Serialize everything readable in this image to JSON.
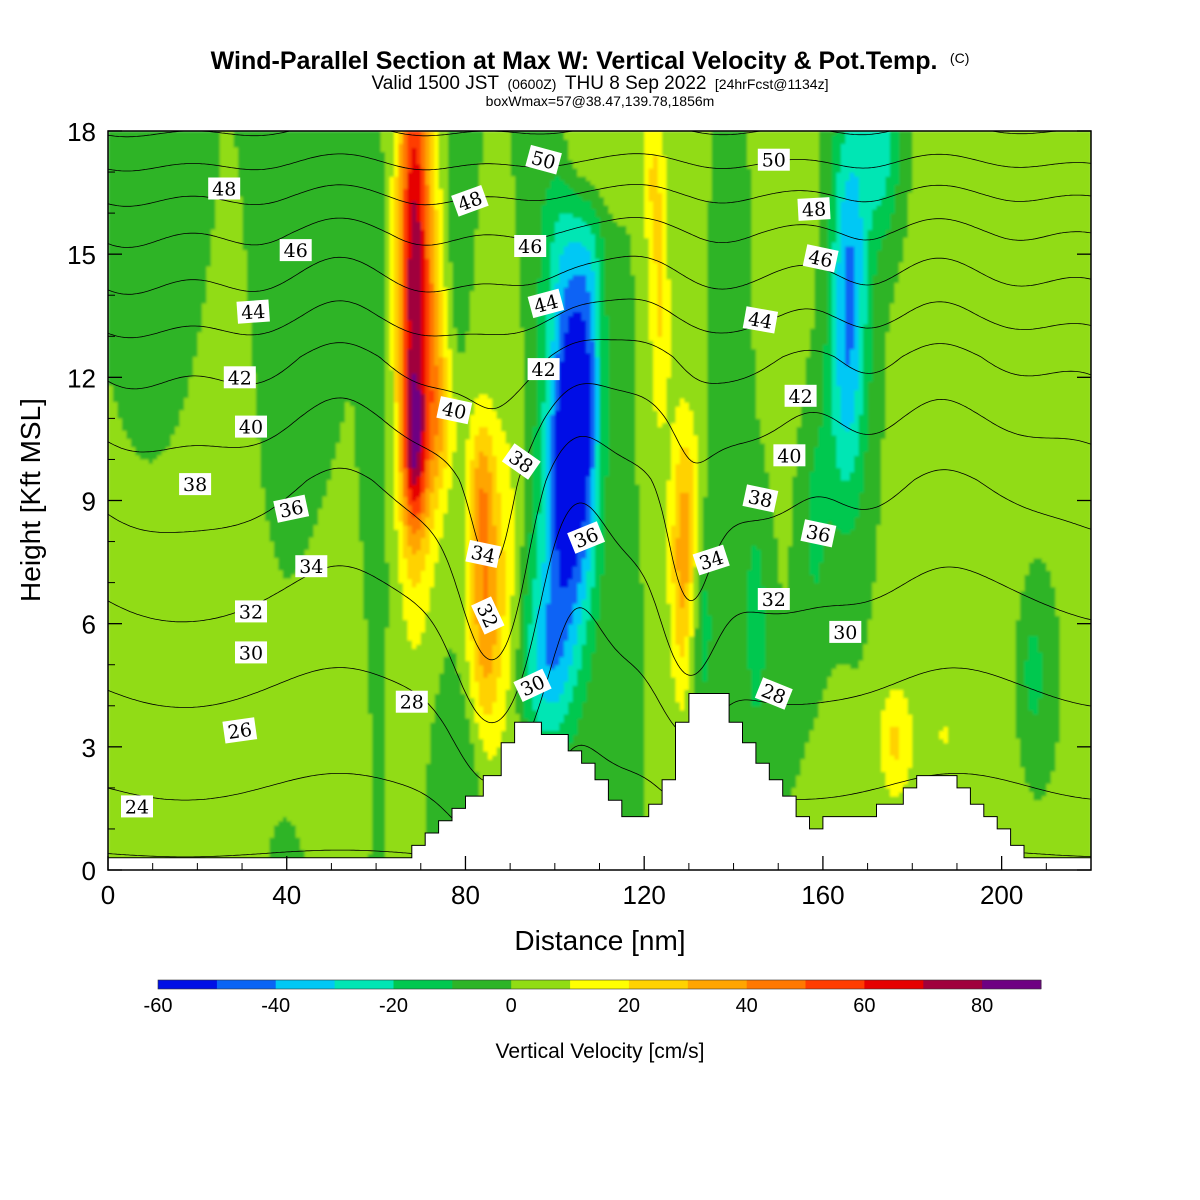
{
  "header": {
    "title": "Wind-Parallel Section at Max W: Vertical Velocity & Pot.Temp.",
    "title_mark": "(C)",
    "valid_prefix": "Valid 1500 JST",
    "valid_utc": "(0600Z)",
    "valid_date": "THU 8 Sep 2022",
    "forecast": "[24hrFcst@1134z]",
    "box_info": "boxWmax=57@38.47,139.78,1856m"
  },
  "chart_data": {
    "type": "heatmap",
    "xlabel": "Distance [nm]",
    "ylabel": "Height [Kft MSL]",
    "xlim": [
      0,
      220
    ],
    "ylim": [
      0,
      18
    ],
    "x_ticks": [
      0,
      40,
      80,
      120,
      160,
      200
    ],
    "y_ticks": [
      0,
      3,
      6,
      9,
      12,
      15,
      18
    ],
    "colorbar": {
      "title": "Vertical Velocity [cm/s]",
      "range": [
        -60,
        90
      ],
      "step": 10,
      "tick_labels": [
        "-60",
        "-40",
        "-20",
        "0",
        "20",
        "40",
        "60",
        "80"
      ],
      "colors": [
        "#0010e6",
        "#0a64f5",
        "#00c8f5",
        "#00e6b4",
        "#00c850",
        "#2db428",
        "#91dc14",
        "#ffff00",
        "#ffd200",
        "#ffa500",
        "#ff7800",
        "#ff3c00",
        "#e60000",
        "#a0003c",
        "#6e0082"
      ]
    },
    "background_color": "#2db428",
    "velocity_features": [
      {
        "x": 68.5,
        "y": 14.5,
        "sx": 2.6,
        "sy": 4.5,
        "w": 75
      },
      {
        "x": 68.5,
        "y": 10.2,
        "sx": 1.8,
        "sy": 1.3,
        "w": 35
      },
      {
        "x": 73,
        "y": 12.2,
        "sx": 2.2,
        "sy": 3,
        "w": 22
      },
      {
        "x": 75,
        "y": 11,
        "sx": 2.5,
        "sy": 1.3,
        "w": 16
      },
      {
        "x": 84.5,
        "y": 6.5,
        "sx": 2.8,
        "sy": 2.7,
        "w": 40
      },
      {
        "x": 83.5,
        "y": 9.5,
        "sx": 2,
        "sy": 1.2,
        "w": 18
      },
      {
        "x": 90,
        "y": 7.5,
        "sx": 2,
        "sy": 4,
        "w": 10
      },
      {
        "x": 104,
        "y": 11,
        "sx": 3.6,
        "sy": 2.6,
        "w": -55
      },
      {
        "x": 102,
        "y": 8,
        "sx": 4.5,
        "sy": 2.6,
        "w": -32
      },
      {
        "x": 98,
        "y": 5,
        "sx": 4,
        "sy": 1.5,
        "w": -27
      },
      {
        "x": 103,
        "y": 15.5,
        "sx": 5,
        "sy": 2,
        "w": -18
      },
      {
        "x": 108,
        "y": 13,
        "sx": 2,
        "sy": 3,
        "w": -15
      },
      {
        "x": 107,
        "y": 17.4,
        "sx": 4,
        "sy": 1.2,
        "w": 22
      },
      {
        "x": 122,
        "y": 17,
        "sx": 1.8,
        "sy": 1.5,
        "w": 18
      },
      {
        "x": 123.5,
        "y": 13.5,
        "sx": 1.7,
        "sy": 2.2,
        "w": 20
      },
      {
        "x": 128.5,
        "y": 7.6,
        "sx": 2,
        "sy": 2.4,
        "w": 34
      },
      {
        "x": 131,
        "y": 8.8,
        "sx": 1.5,
        "sy": 1.5,
        "w": 12
      },
      {
        "x": 133,
        "y": 6,
        "sx": 2,
        "sy": 2,
        "w": -14
      },
      {
        "x": 145,
        "y": 6,
        "sx": 2.2,
        "sy": 2.5,
        "w": -14
      },
      {
        "x": 166,
        "y": 14.8,
        "sx": 3,
        "sy": 2.8,
        "w": -38
      },
      {
        "x": 165,
        "y": 11,
        "sx": 3,
        "sy": 2.2,
        "w": -18
      },
      {
        "x": 158,
        "y": 8.5,
        "sx": 2.5,
        "sy": 2.5,
        "w": -12
      },
      {
        "x": 173,
        "y": 17.5,
        "sx": 3,
        "sy": 1.5,
        "w": -25
      },
      {
        "x": 176,
        "y": 3.1,
        "sx": 2.5,
        "sy": 1,
        "w": 20
      },
      {
        "x": 207,
        "y": 4.8,
        "sx": 2.3,
        "sy": 1.3,
        "w": -15
      },
      {
        "x": 60,
        "y": 11,
        "sx": 1.5,
        "sy": 4,
        "w": -10
      },
      {
        "x": 78,
        "y": 16.5,
        "sx": 1.5,
        "sy": 3,
        "w": -10
      },
      {
        "x": 141,
        "y": 13.5,
        "sx": 2.5,
        "sy": 3,
        "w": -10
      },
      {
        "x": 40,
        "y": 12,
        "sx": 4,
        "sy": 8,
        "w": -8
      },
      {
        "x": 12,
        "y": 14,
        "sx": 5,
        "sy": 3,
        "w": -9
      },
      {
        "x": 20,
        "y": 6.5,
        "sx": 10,
        "sy": 4,
        "w": 8
      },
      {
        "x": 38,
        "y": 5,
        "sx": 9,
        "sy": 2,
        "w": 8
      },
      {
        "x": 150,
        "y": 14.5,
        "sx": 6,
        "sy": 3.5,
        "w": 7
      },
      {
        "x": 192,
        "y": 10,
        "sx": 9,
        "sy": 8,
        "w": 7
      },
      {
        "x": 46,
        "y": 4,
        "sx": 6,
        "sy": 2,
        "w": 6
      },
      {
        "x": 80,
        "y": 2.5,
        "sx": 4,
        "sy": 1.5,
        "w": -12
      },
      {
        "x": 186,
        "y": 3.2,
        "sx": 5,
        "sy": 1.2,
        "w": 6
      },
      {
        "x": 162,
        "y": 2.8,
        "sx": 3,
        "sy": 1.2,
        "w": 5
      }
    ],
    "terrain_kft": [
      [
        0,
        0.3
      ],
      [
        68,
        0.3
      ],
      [
        68,
        0.6
      ],
      [
        71,
        0.6
      ],
      [
        71,
        0.9
      ],
      [
        74,
        0.9
      ],
      [
        74,
        1.2
      ],
      [
        77,
        1.2
      ],
      [
        77,
        1.5
      ],
      [
        80,
        1.5
      ],
      [
        80,
        1.8
      ],
      [
        84,
        1.8
      ],
      [
        84,
        2.3
      ],
      [
        88,
        2.3
      ],
      [
        88,
        3.1
      ],
      [
        91,
        3.1
      ],
      [
        91,
        3.6
      ],
      [
        97,
        3.6
      ],
      [
        97,
        3.3
      ],
      [
        103,
        3.3
      ],
      [
        103,
        2.9
      ],
      [
        106,
        2.9
      ],
      [
        106,
        2.6
      ],
      [
        109,
        2.6
      ],
      [
        109,
        2.2
      ],
      [
        112,
        2.2
      ],
      [
        112,
        1.7
      ],
      [
        115,
        1.7
      ],
      [
        115,
        1.3
      ],
      [
        121,
        1.3
      ],
      [
        121,
        1.6
      ],
      [
        124,
        1.6
      ],
      [
        124,
        2.2
      ],
      [
        127,
        2.2
      ],
      [
        127,
        3.6
      ],
      [
        130,
        3.6
      ],
      [
        130,
        4.3
      ],
      [
        139,
        4.3
      ],
      [
        139,
        3.6
      ],
      [
        142,
        3.6
      ],
      [
        142,
        3.1
      ],
      [
        145,
        3.1
      ],
      [
        145,
        2.6
      ],
      [
        148,
        2.6
      ],
      [
        148,
        2.2
      ],
      [
        151,
        2.2
      ],
      [
        151,
        1.8
      ],
      [
        154,
        1.8
      ],
      [
        154,
        1.3
      ],
      [
        157,
        1.3
      ],
      [
        157,
        1.0
      ],
      [
        160,
        1.0
      ],
      [
        160,
        1.3
      ],
      [
        172,
        1.3
      ],
      [
        172,
        1.6
      ],
      [
        178,
        1.6
      ],
      [
        178,
        2.0
      ],
      [
        181,
        2.0
      ],
      [
        181,
        2.3
      ],
      [
        190,
        2.3
      ],
      [
        190,
        2.0
      ],
      [
        193,
        2.0
      ],
      [
        193,
        1.6
      ],
      [
        196,
        1.6
      ],
      [
        196,
        1.3
      ],
      [
        199,
        1.3
      ],
      [
        199,
        1.0
      ],
      [
        202,
        1.0
      ],
      [
        202,
        0.6
      ],
      [
        205,
        0.6
      ],
      [
        205,
        0.3
      ],
      [
        220,
        0.3
      ]
    ],
    "theta_contours": {
      "levels_every": 1,
      "labelled": [
        {
          "value": "24",
          "x": 6.5,
          "y": 1.55,
          "angle": 0
        },
        {
          "value": "26",
          "x": 29.5,
          "y": 3.4,
          "angle": -8
        },
        {
          "value": "28",
          "x": 68,
          "y": 4.1,
          "angle": 0
        },
        {
          "value": "28",
          "x": 149,
          "y": 4.3,
          "angle": 22
        },
        {
          "value": "30",
          "x": 32,
          "y": 5.3,
          "angle": 0
        },
        {
          "value": "30",
          "x": 95,
          "y": 4.5,
          "angle": -25
        },
        {
          "value": "30",
          "x": 165,
          "y": 5.8,
          "angle": 0
        },
        {
          "value": "32",
          "x": 32,
          "y": 6.3,
          "angle": 0
        },
        {
          "value": "32",
          "x": 85,
          "y": 6.2,
          "angle": 65
        },
        {
          "value": "32",
          "x": 149,
          "y": 6.6,
          "angle": 0
        },
        {
          "value": "34",
          "x": 45.5,
          "y": 7.4,
          "angle": 0
        },
        {
          "value": "34",
          "x": 84,
          "y": 7.7,
          "angle": 12
        },
        {
          "value": "34",
          "x": 135,
          "y": 7.55,
          "angle": -18
        },
        {
          "value": "36",
          "x": 41,
          "y": 8.8,
          "angle": -12
        },
        {
          "value": "36",
          "x": 107,
          "y": 8.1,
          "angle": -22
        },
        {
          "value": "36",
          "x": 159,
          "y": 8.2,
          "angle": 12
        },
        {
          "value": "38",
          "x": 19.5,
          "y": 9.4,
          "angle": 0
        },
        {
          "value": "38",
          "x": 92.5,
          "y": 9.95,
          "angle": 35
        },
        {
          "value": "38",
          "x": 146,
          "y": 9.05,
          "angle": 12
        },
        {
          "value": "40",
          "x": 32,
          "y": 10.8,
          "angle": 0
        },
        {
          "value": "40",
          "x": 77.5,
          "y": 11.2,
          "angle": 12
        },
        {
          "value": "40",
          "x": 152.5,
          "y": 10.1,
          "angle": 0
        },
        {
          "value": "42",
          "x": 29.5,
          "y": 12,
          "angle": 0
        },
        {
          "value": "42",
          "x": 97.5,
          "y": 12.2,
          "angle": 0
        },
        {
          "value": "42",
          "x": 155,
          "y": 11.55,
          "angle": 0
        },
        {
          "value": "44",
          "x": 32.5,
          "y": 13.6,
          "angle": -4
        },
        {
          "value": "44",
          "x": 98,
          "y": 13.8,
          "angle": -15
        },
        {
          "value": "44",
          "x": 146,
          "y": 13.4,
          "angle": 10
        },
        {
          "value": "46",
          "x": 42,
          "y": 15.1,
          "angle": 0
        },
        {
          "value": "46",
          "x": 94.5,
          "y": 15.2,
          "angle": 0
        },
        {
          "value": "46",
          "x": 159.5,
          "y": 14.9,
          "angle": 12
        },
        {
          "value": "48",
          "x": 26,
          "y": 16.6,
          "angle": 0
        },
        {
          "value": "48",
          "x": 81,
          "y": 16.3,
          "angle": -20
        },
        {
          "value": "48",
          "x": 158,
          "y": 16.1,
          "angle": -3
        },
        {
          "value": "50",
          "x": 97.5,
          "y": 17.3,
          "angle": 15
        },
        {
          "value": "50",
          "x": 149,
          "y": 17.3,
          "angle": 0
        }
      ]
    }
  }
}
